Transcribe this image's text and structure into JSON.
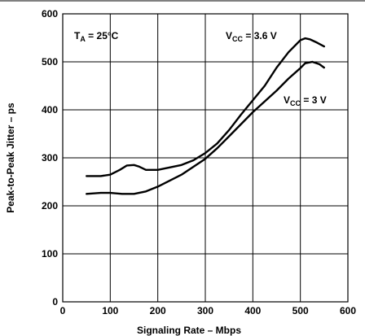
{
  "chart_data": {
    "type": "line",
    "xlabel": "Signaling Rate – Mbps",
    "ylabel": "Peak-to-Peak Jitter – ps",
    "xlim": [
      0,
      600
    ],
    "ylim": [
      0,
      600
    ],
    "xticks": [
      0,
      100,
      200,
      300,
      400,
      500,
      600
    ],
    "yticks": [
      0,
      100,
      200,
      300,
      400,
      500,
      600
    ],
    "grid": true,
    "annotations": {
      "temperature": {
        "main": "T",
        "sub": "A",
        "rest": " = 25°C"
      },
      "vcc_high": {
        "main": "V",
        "sub": "CC",
        "rest": " = 3.6 V"
      },
      "vcc_low": {
        "main": "V",
        "sub": "CC",
        "rest": " =  3 V"
      }
    },
    "series": [
      {
        "label_key": "vcc_high",
        "x": [
          50,
          80,
          100,
          120,
          135,
          150,
          160,
          175,
          200,
          225,
          250,
          275,
          300,
          325,
          350,
          375,
          400,
          425,
          450,
          475,
          500,
          510,
          520,
          535,
          550
        ],
        "y": [
          262,
          262,
          265,
          275,
          284,
          285,
          282,
          275,
          275,
          280,
          285,
          295,
          310,
          330,
          358,
          390,
          420,
          450,
          488,
          520,
          545,
          549,
          547,
          540,
          532
        ]
      },
      {
        "label_key": "vcc_low",
        "x": [
          50,
          80,
          100,
          125,
          150,
          175,
          200,
          250,
          300,
          325,
          350,
          400,
          450,
          475,
          500,
          510,
          525,
          540,
          550
        ],
        "y": [
          225,
          227,
          227,
          225,
          225,
          230,
          240,
          265,
          298,
          320,
          345,
          395,
          440,
          465,
          487,
          497,
          500,
          495,
          488
        ]
      }
    ]
  }
}
